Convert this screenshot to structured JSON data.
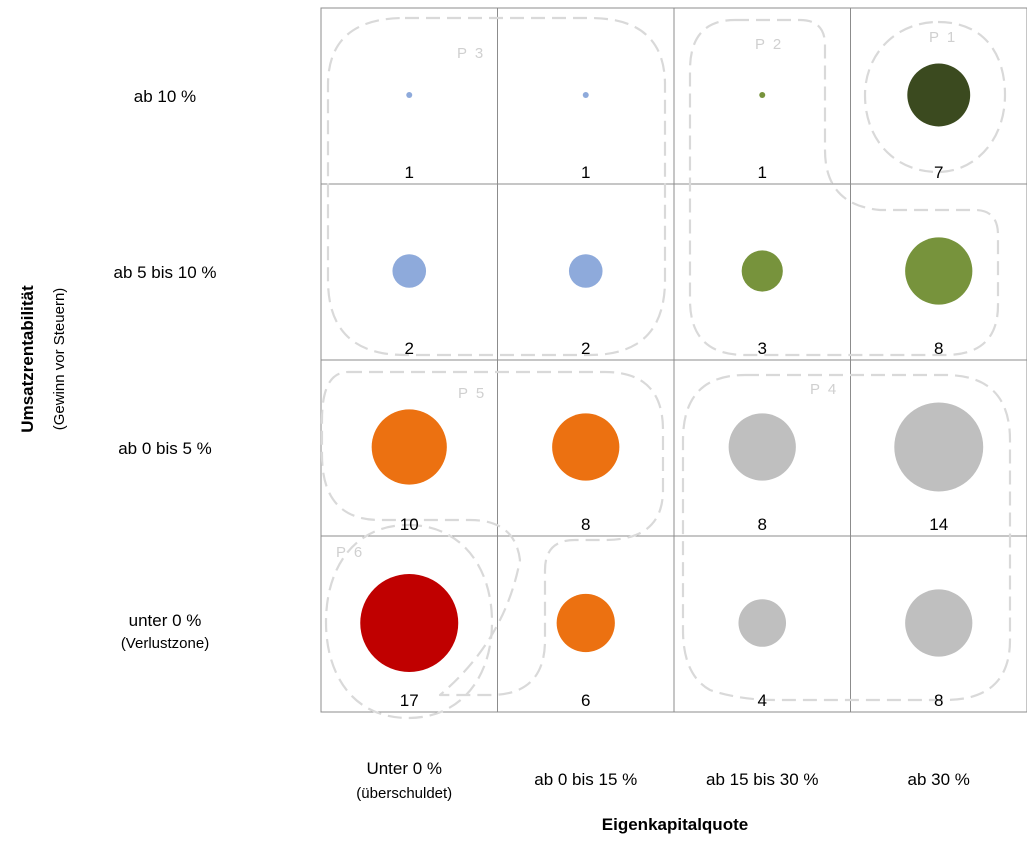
{
  "chart_data": {
    "type": "bubble-matrix",
    "x_axis": {
      "title": "Eigenkapitalquote",
      "categories": [
        {
          "label": "Unter 0 %",
          "sub": "(überschuldet)"
        },
        {
          "label": "ab 0 bis 15 %",
          "sub": ""
        },
        {
          "label": "ab 15 bis 30 %",
          "sub": ""
        },
        {
          "label": "ab 30 %",
          "sub": ""
        }
      ]
    },
    "y_axis": {
      "title": "Umsatzrentabilität",
      "subtitle": "(Gewinn vor Steuern)",
      "categories": [
        {
          "label": "ab 10 %",
          "sub": ""
        },
        {
          "label": "ab 5 bis 10 %",
          "sub": ""
        },
        {
          "label": "ab 0 bis 5 %",
          "sub": ""
        },
        {
          "label": "unter 0 %",
          "sub": "(Verlustzone)"
        }
      ]
    },
    "cells": [
      [
        {
          "value": 1,
          "color": "#8eaadb"
        },
        {
          "value": 1,
          "color": "#8eaadb"
        },
        {
          "value": 1,
          "color": "#77933c"
        },
        {
          "value": 7,
          "color": "#3b4a1f"
        }
      ],
      [
        {
          "value": 2,
          "color": "#8eaadb"
        },
        {
          "value": 2,
          "color": "#8eaadb"
        },
        {
          "value": 3,
          "color": "#77933c"
        },
        {
          "value": 8,
          "color": "#77933c"
        }
      ],
      [
        {
          "value": 10,
          "color": "#ec7111"
        },
        {
          "value": 8,
          "color": "#ec7111"
        },
        {
          "value": 8,
          "color": "#bfbfbf"
        },
        {
          "value": 14,
          "color": "#bfbfbf"
        }
      ],
      [
        {
          "value": 17,
          "color": "#c00000"
        },
        {
          "value": 6,
          "color": "#ec7111"
        },
        {
          "value": 4,
          "color": "#bfbfbf"
        },
        {
          "value": 8,
          "color": "#bfbfbf"
        }
      ]
    ],
    "groups": [
      {
        "label": "P 1"
      },
      {
        "label": "P 2"
      },
      {
        "label": "P 3"
      },
      {
        "label": "P 4"
      },
      {
        "label": "P 5"
      },
      {
        "label": "P 6"
      }
    ],
    "colors": {
      "grid": "#8c8c8c",
      "group_outline": "#d9d9d9",
      "group_label": "#d0d0d0"
    }
  }
}
